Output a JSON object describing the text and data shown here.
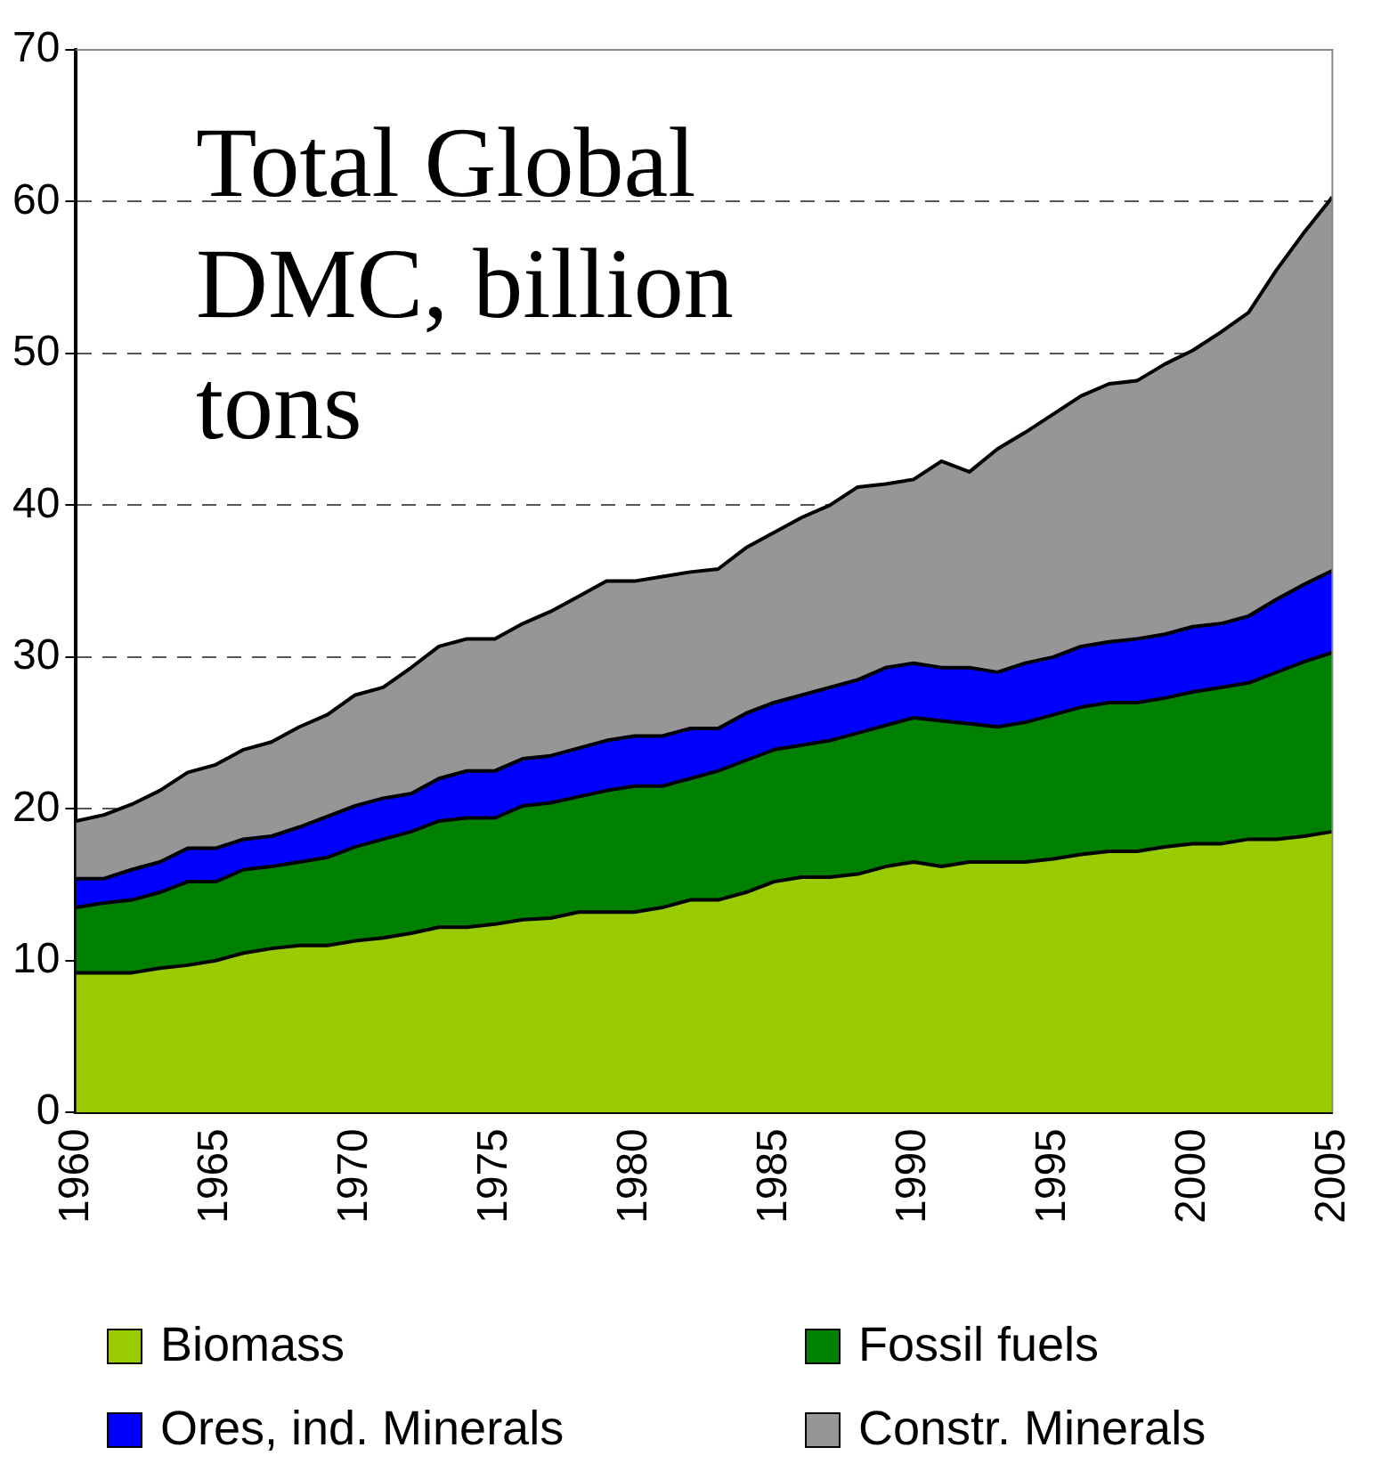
{
  "chart_data": {
    "type": "area",
    "title": "Total Global DMC, billion tons",
    "stacked": true,
    "x": [
      1960,
      1961,
      1962,
      1963,
      1964,
      1965,
      1966,
      1967,
      1968,
      1969,
      1970,
      1971,
      1972,
      1973,
      1974,
      1975,
      1976,
      1977,
      1978,
      1979,
      1980,
      1981,
      1982,
      1983,
      1984,
      1985,
      1986,
      1987,
      1988,
      1989,
      1990,
      1991,
      1992,
      1993,
      1994,
      1995,
      1996,
      1997,
      1998,
      1999,
      2000,
      2001,
      2002,
      2003,
      2004,
      2005
    ],
    "xlim": [
      1960,
      2005
    ],
    "xticks": [
      1960,
      1965,
      1970,
      1975,
      1980,
      1985,
      1990,
      1995,
      2000,
      2005
    ],
    "ylim": [
      0,
      70
    ],
    "yticks": [
      0,
      10,
      20,
      30,
      40,
      50,
      60,
      70
    ],
    "grid": "y",
    "legend": "bottom",
    "series": [
      {
        "name": "Biomass",
        "color": "#99cc00",
        "values": [
          9.2,
          9.2,
          9.2,
          9.5,
          9.7,
          10.0,
          10.5,
          10.8,
          11.0,
          11.0,
          11.3,
          11.5,
          11.8,
          12.2,
          12.2,
          12.4,
          12.7,
          12.8,
          13.2,
          13.2,
          13.2,
          13.5,
          14.0,
          14.0,
          14.5,
          15.2,
          15.5,
          15.5,
          15.7,
          16.2,
          16.5,
          16.2,
          16.5,
          16.5,
          16.5,
          16.7,
          17.0,
          17.2,
          17.2,
          17.5,
          17.7,
          17.7,
          18.0,
          18.0,
          18.2,
          18.5
        ]
      },
      {
        "name": "Fossil fuels",
        "color": "#008000",
        "values": [
          4.3,
          4.6,
          4.8,
          5.0,
          5.5,
          5.2,
          5.5,
          5.4,
          5.5,
          5.8,
          6.2,
          6.5,
          6.7,
          7.0,
          7.2,
          7.0,
          7.5,
          7.6,
          7.6,
          8.0,
          8.3,
          8.0,
          8.0,
          8.5,
          8.7,
          8.7,
          8.7,
          9.0,
          9.3,
          9.3,
          9.5,
          9.6,
          9.1,
          8.9,
          9.2,
          9.5,
          9.7,
          9.8,
          9.8,
          9.8,
          10.0,
          10.3,
          10.3,
          11.0,
          11.5,
          11.8
        ]
      },
      {
        "name": "Ores, ind. Minerals",
        "color": "#0000ff",
        "values": [
          1.9,
          1.6,
          2.0,
          2.0,
          2.2,
          2.2,
          2.0,
          2.0,
          2.3,
          2.7,
          2.7,
          2.7,
          2.5,
          2.8,
          3.1,
          3.1,
          3.1,
          3.1,
          3.2,
          3.3,
          3.3,
          3.3,
          3.3,
          2.8,
          3.1,
          3.1,
          3.3,
          3.5,
          3.5,
          3.8,
          3.6,
          3.5,
          3.7,
          3.6,
          3.9,
          3.8,
          4.0,
          4.0,
          4.2,
          4.2,
          4.3,
          4.2,
          4.4,
          4.8,
          5.1,
          5.4
        ]
      },
      {
        "name": "Constr. Minerals",
        "color": "#969696",
        "values": [
          3.8,
          4.2,
          4.3,
          4.7,
          5.0,
          5.5,
          5.9,
          6.2,
          6.6,
          6.7,
          7.3,
          7.3,
          8.3,
          8.7,
          8.7,
          8.7,
          8.9,
          9.5,
          10.0,
          10.5,
          10.2,
          10.5,
          10.3,
          10.5,
          10.9,
          11.2,
          11.7,
          12.0,
          12.7,
          12.1,
          12.1,
          13.6,
          12.9,
          14.7,
          15.2,
          16.0,
          16.5,
          17.0,
          17.0,
          17.8,
          18.2,
          19.2,
          20.0,
          21.7,
          23.2,
          24.6
        ]
      }
    ]
  }
}
